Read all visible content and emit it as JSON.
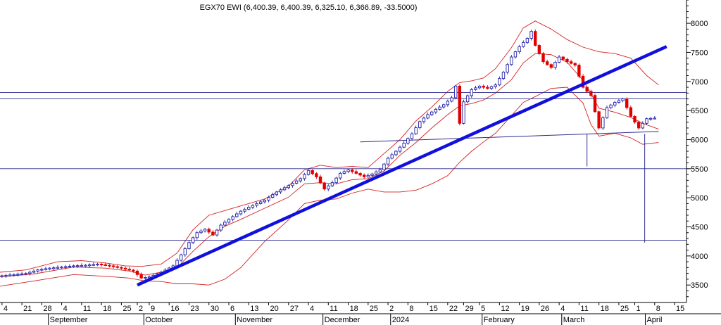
{
  "title": "EGX70 EWI (6,400.39, 6,400.39, 6,325.10, 6,366.89, -33.5000)",
  "colors": {
    "up_candle": "#1f1fa8",
    "down_candle": "#e00000",
    "band": "#d42020",
    "trendline": "#1010dd",
    "hline": "#2b2b90",
    "axis": "#000000",
    "background": "#ffffff"
  },
  "chart_data": {
    "type": "candlestick",
    "title": "EGX70 EWI (6,400.39, 6,400.39, 6,325.10, 6,366.89, -33.5000)",
    "y_axis": {
      "position": "right",
      "range": [
        3200,
        8400
      ],
      "ticks": [
        3500,
        4000,
        4500,
        5000,
        5500,
        6000,
        6500,
        7000,
        7500,
        8000
      ]
    },
    "x_axis": {
      "day_ticks": [
        {
          "t": 0,
          "label": "4"
        },
        {
          "t": 5,
          "label": "21"
        },
        {
          "t": 10,
          "label": "28"
        },
        {
          "t": 15,
          "label": "4"
        },
        {
          "t": 20,
          "label": "11"
        },
        {
          "t": 25,
          "label": "18"
        },
        {
          "t": 30,
          "label": "25"
        },
        {
          "t": 34,
          "label": "2"
        },
        {
          "t": 37,
          "label": "9"
        },
        {
          "t": 42,
          "label": "16"
        },
        {
          "t": 47,
          "label": "23"
        },
        {
          "t": 52,
          "label": "30"
        },
        {
          "t": 57,
          "label": "6"
        },
        {
          "t": 62,
          "label": "13"
        },
        {
          "t": 67,
          "label": "20"
        },
        {
          "t": 72,
          "label": "27"
        },
        {
          "t": 77,
          "label": "4"
        },
        {
          "t": 82,
          "label": "11"
        },
        {
          "t": 87,
          "label": "18"
        },
        {
          "t": 92,
          "label": "25"
        },
        {
          "t": 97,
          "label": "2"
        },
        {
          "t": 102,
          "label": "8"
        },
        {
          "t": 107,
          "label": "15"
        },
        {
          "t": 112,
          "label": "22"
        },
        {
          "t": 116,
          "label": "29"
        },
        {
          "t": 120,
          "label": "5"
        },
        {
          "t": 125,
          "label": "12"
        },
        {
          "t": 130,
          "label": "19"
        },
        {
          "t": 135,
          "label": "26"
        },
        {
          "t": 140,
          "label": "4"
        },
        {
          "t": 145,
          "label": "11"
        },
        {
          "t": 150,
          "label": "18"
        },
        {
          "t": 155,
          "label": "25"
        },
        {
          "t": 159,
          "label": "1"
        },
        {
          "t": 164,
          "label": "8"
        },
        {
          "t": 169,
          "label": "15"
        }
      ],
      "month_labels": [
        {
          "t": 12,
          "label": "September"
        },
        {
          "t": 36,
          "label": "October"
        },
        {
          "t": 59,
          "label": "November"
        },
        {
          "t": 81,
          "label": "December"
        },
        {
          "t": 98,
          "label": "2024"
        },
        {
          "t": 121,
          "label": "February"
        },
        {
          "t": 141,
          "label": "March"
        },
        {
          "t": 162,
          "label": "April"
        }
      ],
      "t_range": [
        -0.5,
        172
      ]
    },
    "trend_knots": [
      [
        0,
        3660
      ],
      [
        3,
        3680
      ],
      [
        6,
        3700
      ],
      [
        9,
        3760
      ],
      [
        12,
        3790
      ],
      [
        15,
        3810
      ],
      [
        18,
        3830
      ],
      [
        21,
        3840
      ],
      [
        24,
        3860
      ],
      [
        27,
        3830
      ],
      [
        30,
        3790
      ],
      [
        33,
        3740
      ],
      [
        35,
        3620
      ],
      [
        37,
        3640
      ],
      [
        40,
        3720
      ],
      [
        43,
        3830
      ],
      [
        45,
        4020
      ],
      [
        47,
        4230
      ],
      [
        49,
        4400
      ],
      [
        51,
        4460
      ],
      [
        53,
        4360
      ],
      [
        55,
        4530
      ],
      [
        57,
        4630
      ],
      [
        60,
        4770
      ],
      [
        63,
        4870
      ],
      [
        66,
        4960
      ],
      [
        69,
        5100
      ],
      [
        72,
        5210
      ],
      [
        75,
        5330
      ],
      [
        77,
        5470
      ],
      [
        79,
        5360
      ],
      [
        81,
        5150
      ],
      [
        83,
        5260
      ],
      [
        85,
        5420
      ],
      [
        87,
        5480
      ],
      [
        89,
        5420
      ],
      [
        91,
        5360
      ],
      [
        93,
        5410
      ],
      [
        95,
        5480
      ],
      [
        97,
        5680
      ],
      [
        99,
        5800
      ],
      [
        101,
        5940
      ],
      [
        103,
        6100
      ],
      [
        105,
        6310
      ],
      [
        107,
        6430
      ],
      [
        109,
        6520
      ],
      [
        111,
        6600
      ],
      [
        113,
        6720
      ],
      [
        114,
        6920
      ],
      [
        115,
        6280
      ],
      [
        116,
        6650
      ],
      [
        118,
        6860
      ],
      [
        120,
        6920
      ],
      [
        122,
        6880
      ],
      [
        124,
        6940
      ],
      [
        126,
        7160
      ],
      [
        128,
        7420
      ],
      [
        130,
        7600
      ],
      [
        132,
        7740
      ],
      [
        133,
        7860
      ],
      [
        134,
        7620
      ],
      [
        136,
        7340
      ],
      [
        138,
        7240
      ],
      [
        140,
        7420
      ],
      [
        142,
        7340
      ],
      [
        144,
        7280
      ],
      [
        146,
        6900
      ],
      [
        148,
        6760
      ],
      [
        150,
        6200
      ],
      [
        152,
        6550
      ],
      [
        154,
        6640
      ],
      [
        156,
        6700
      ],
      [
        158,
        6400
      ],
      [
        160,
        6200
      ],
      [
        162,
        6360
      ],
      [
        164,
        6370
      ]
    ],
    "upper_band_knots": [
      [
        -0.5,
        3720
      ],
      [
        6,
        3760
      ],
      [
        14,
        3900
      ],
      [
        20,
        3920
      ],
      [
        26,
        3880
      ],
      [
        31,
        3830
      ],
      [
        35,
        3820
      ],
      [
        40,
        3860
      ],
      [
        44,
        4050
      ],
      [
        48,
        4450
      ],
      [
        52,
        4700
      ],
      [
        56,
        4780
      ],
      [
        60,
        4860
      ],
      [
        66,
        4980
      ],
      [
        72,
        5200
      ],
      [
        76,
        5480
      ],
      [
        80,
        5560
      ],
      [
        84,
        5520
      ],
      [
        88,
        5540
      ],
      [
        92,
        5520
      ],
      [
        96,
        5760
      ],
      [
        100,
        6000
      ],
      [
        104,
        6320
      ],
      [
        108,
        6560
      ],
      [
        112,
        6830
      ],
      [
        115,
        6980
      ],
      [
        118,
        7010
      ],
      [
        121,
        7060
      ],
      [
        124,
        7220
      ],
      [
        128,
        7580
      ],
      [
        131,
        7920
      ],
      [
        134,
        8040
      ],
      [
        138,
        7900
      ],
      [
        142,
        7720
      ],
      [
        146,
        7590
      ],
      [
        150,
        7510
      ],
      [
        154,
        7480
      ],
      [
        158,
        7400
      ],
      [
        162,
        7100
      ],
      [
        165,
        6940
      ]
    ],
    "middle_band_knots": [
      [
        -0.5,
        3640
      ],
      [
        8,
        3690
      ],
      [
        18,
        3810
      ],
      [
        26,
        3790
      ],
      [
        32,
        3740
      ],
      [
        36,
        3670
      ],
      [
        40,
        3720
      ],
      [
        44,
        3800
      ],
      [
        48,
        4080
      ],
      [
        52,
        4330
      ],
      [
        56,
        4510
      ],
      [
        60,
        4630
      ],
      [
        66,
        4820
      ],
      [
        72,
        5010
      ],
      [
        76,
        5240
      ],
      [
        80,
        5260
      ],
      [
        84,
        5240
      ],
      [
        88,
        5310
      ],
      [
        92,
        5330
      ],
      [
        96,
        5460
      ],
      [
        100,
        5730
      ],
      [
        104,
        5950
      ],
      [
        108,
        6200
      ],
      [
        112,
        6430
      ],
      [
        115,
        6580
      ],
      [
        118,
        6620
      ],
      [
        121,
        6680
      ],
      [
        124,
        6800
      ],
      [
        128,
        7030
      ],
      [
        131,
        7320
      ],
      [
        134,
        7480
      ],
      [
        138,
        7460
      ],
      [
        142,
        7330
      ],
      [
        146,
        7020
      ],
      [
        148,
        6790
      ],
      [
        150,
        6540
      ],
      [
        154,
        6470
      ],
      [
        158,
        6380
      ],
      [
        161,
        6280
      ],
      [
        165,
        6180
      ]
    ],
    "lower_band_knots": [
      [
        -0.5,
        3480
      ],
      [
        8,
        3570
      ],
      [
        18,
        3680
      ],
      [
        26,
        3650
      ],
      [
        32,
        3620
      ],
      [
        36,
        3570
      ],
      [
        40,
        3560
      ],
      [
        44,
        3520
      ],
      [
        48,
        3520
      ],
      [
        52,
        3500
      ],
      [
        56,
        3600
      ],
      [
        60,
        3800
      ],
      [
        66,
        4250
      ],
      [
        72,
        4620
      ],
      [
        76,
        4900
      ],
      [
        80,
        4960
      ],
      [
        84,
        4980
      ],
      [
        88,
        5080
      ],
      [
        92,
        5150
      ],
      [
        96,
        5100
      ],
      [
        100,
        5100
      ],
      [
        104,
        5130
      ],
      [
        108,
        5240
      ],
      [
        112,
        5380
      ],
      [
        115,
        5610
      ],
      [
        118,
        5800
      ],
      [
        121,
        5960
      ],
      [
        124,
        6110
      ],
      [
        128,
        6410
      ],
      [
        131,
        6640
      ],
      [
        134,
        6740
      ],
      [
        138,
        6880
      ],
      [
        142,
        6900
      ],
      [
        146,
        6630
      ],
      [
        148,
        6260
      ],
      [
        150,
        6060
      ],
      [
        154,
        6110
      ],
      [
        158,
        6030
      ],
      [
        161,
        5920
      ],
      [
        165,
        5950
      ]
    ],
    "hlines": [
      6810,
      6700,
      5500,
      4270
    ],
    "trendline": {
      "from": [
        34,
        3500
      ],
      "to": [
        167,
        7600
      ]
    },
    "neckline": {
      "from": [
        90,
        5960
      ],
      "to": [
        165,
        6140
      ]
    },
    "projection_lines": [
      {
        "t": 147,
        "from": 6100,
        "to": 5540
      },
      {
        "t": 161.5,
        "from": 6100,
        "to": 4230
      }
    ]
  }
}
